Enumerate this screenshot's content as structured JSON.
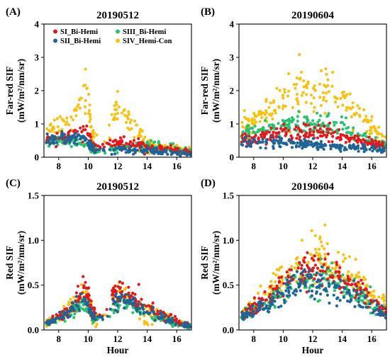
{
  "colors": {
    "SI_Bi-Hemi": "#e8151b",
    "SII_Bi-Hemi": "#1f6496",
    "SIII_Bi-Hemi": "#26c271",
    "SIV_Hemi-Con": "#f6c20f"
  },
  "chart_data": [
    {
      "panel": "(A)",
      "title": "20190512",
      "type": "scatter",
      "xlabel": "",
      "ylabel": [
        "Far-red SIF",
        "(mW/m²/nm/sr)"
      ],
      "xlim": [
        7,
        17
      ],
      "ylim": [
        0,
        4
      ],
      "xticks": [
        8,
        10,
        12,
        14,
        16
      ],
      "yticks": [
        "0",
        "1",
        "2",
        "3",
        "4"
      ],
      "grid": false,
      "legend": {
        "placement": "top",
        "entries": [
          "SI_Bi-Hemi",
          "SIII_Bi-Hemi",
          "SII_Bi-Hemi",
          "SIV_Hemi-Con"
        ]
      },
      "series_pattern": "clear-sky morning, clouds 10-12h, fragmented afternoon",
      "series": [
        {
          "name": "SI_Bi-Hemi",
          "x": [
            7.2,
            8,
            8.5,
            9,
            9.5,
            9.9,
            10.3,
            11,
            11.8,
            12.3,
            13,
            13.5,
            14,
            15,
            16,
            16.9
          ],
          "y": [
            0.55,
            0.6,
            0.65,
            0.7,
            0.85,
            0.8,
            0.35,
            0.3,
            0.4,
            0.45,
            0.35,
            0.4,
            0.3,
            0.25,
            0.2,
            0.15
          ]
        },
        {
          "name": "SII_Bi-Hemi",
          "x": [
            7.2,
            8,
            8.5,
            9,
            9.5,
            9.9,
            10.3,
            11,
            11.8,
            12.3,
            13,
            13.5,
            14,
            15,
            16,
            16.9
          ],
          "y": [
            0.5,
            0.55,
            0.55,
            0.55,
            0.6,
            0.5,
            0.25,
            0.2,
            0.2,
            0.25,
            0.2,
            0.2,
            0.2,
            0.15,
            0.12,
            0.1
          ]
        },
        {
          "name": "SIII_Bi-Hemi",
          "x": [
            7.2,
            8,
            8.5,
            9,
            9.5,
            9.9,
            10.3,
            11,
            11.8,
            12.3,
            13,
            13.5,
            14,
            15,
            16,
            16.9
          ],
          "y": [
            0.45,
            0.5,
            0.5,
            0.45,
            0.4,
            0.35,
            0.2,
            0.2,
            0.25,
            0.3,
            0.35,
            0.4,
            0.35,
            0.3,
            0.25,
            0.2
          ]
        },
        {
          "name": "SIV_Hemi-Con",
          "x": [
            7.2,
            8,
            8.5,
            9,
            9.5,
            9.9,
            10.3,
            11,
            11.8,
            12.3,
            13,
            13.5,
            14,
            15,
            16,
            16.9
          ],
          "y": [
            0.75,
            0.95,
            1.1,
            1.3,
            1.6,
            2.0,
            0.6,
            0.4,
            1.5,
            1.6,
            0.9,
            0.8,
            0.5,
            0.3,
            0.25,
            0.2
          ]
        }
      ]
    },
    {
      "panel": "(B)",
      "title": "20190604",
      "type": "scatter",
      "xlabel": "",
      "ylabel": [
        "Far-red SIF",
        "(mW/m²/nm/sr)"
      ],
      "xlim": [
        7,
        17
      ],
      "ylim": [
        0,
        4
      ],
      "xticks": [
        8,
        10,
        12,
        14,
        16
      ],
      "yticks": [
        "0",
        "1",
        "2",
        "3",
        "4"
      ],
      "grid": false,
      "series_pattern": "clear-sky diurnal arch",
      "series": [
        {
          "name": "SI_Bi-Hemi",
          "x": [
            7.2,
            8,
            9,
            10,
            11,
            12,
            13,
            14,
            15,
            16,
            16.9
          ],
          "y": [
            0.55,
            0.6,
            0.65,
            0.7,
            0.75,
            0.75,
            0.7,
            0.6,
            0.5,
            0.4,
            0.3
          ]
        },
        {
          "name": "SII_Bi-Hemi",
          "x": [
            7.2,
            8,
            9,
            10,
            11,
            12,
            13,
            14,
            15,
            16,
            16.9
          ],
          "y": [
            0.45,
            0.5,
            0.45,
            0.45,
            0.4,
            0.4,
            0.35,
            0.3,
            0.3,
            0.25,
            0.2
          ]
        },
        {
          "name": "SIII_Bi-Hemi",
          "x": [
            7.2,
            8,
            9,
            10,
            11,
            12,
            13,
            14,
            15,
            16,
            16.9
          ],
          "y": [
            0.65,
            0.75,
            0.85,
            0.95,
            1.0,
            1.0,
            0.95,
            0.85,
            0.7,
            0.5,
            0.35
          ]
        },
        {
          "name": "SIV_Hemi-Con",
          "x": [
            7.2,
            8,
            9,
            10,
            11,
            12,
            13,
            14,
            15,
            16,
            16.9
          ],
          "y": [
            0.85,
            1.1,
            1.4,
            1.75,
            2.0,
            2.1,
            2.0,
            1.7,
            1.3,
            0.9,
            0.5
          ]
        }
      ]
    },
    {
      "panel": "(C)",
      "title": "20190512",
      "type": "scatter",
      "xlabel": "Hour",
      "ylabel": [
        "Red SIF",
        "(mW/m²/nm/sr)"
      ],
      "xlim": [
        7,
        17
      ],
      "ylim": [
        0,
        1.5
      ],
      "xticks": [
        8,
        10,
        12,
        14,
        16
      ],
      "yticks": [
        "0.0",
        "0.5",
        "1.0",
        "1.5"
      ],
      "grid": false,
      "series_pattern": "clear-sky morning, clouds 10-12h, fragmented afternoon",
      "series": [
        {
          "name": "SI_Bi-Hemi",
          "x": [
            7.2,
            8,
            8.5,
            9,
            9.5,
            9.9,
            10.3,
            11,
            11.8,
            12.3,
            13,
            13.5,
            14,
            15,
            16,
            16.9
          ],
          "y": [
            0.08,
            0.15,
            0.2,
            0.3,
            0.42,
            0.45,
            0.18,
            0.15,
            0.4,
            0.45,
            0.35,
            0.3,
            0.25,
            0.18,
            0.1,
            0.05
          ]
        },
        {
          "name": "SII_Bi-Hemi",
          "x": [
            7.2,
            8,
            8.5,
            9,
            9.5,
            9.9,
            10.3,
            11,
            11.8,
            12.3,
            13,
            13.5,
            14,
            15,
            16,
            16.9
          ],
          "y": [
            0.07,
            0.13,
            0.18,
            0.25,
            0.32,
            0.3,
            0.15,
            0.12,
            0.3,
            0.32,
            0.28,
            0.25,
            0.2,
            0.15,
            0.08,
            0.04
          ]
        },
        {
          "name": "SIII_Bi-Hemi",
          "x": [
            7.2,
            8,
            8.5,
            9,
            9.5,
            9.9,
            10.3,
            11,
            11.8,
            12.3,
            13,
            13.5,
            14,
            15,
            16,
            16.9
          ],
          "y": [
            0.07,
            0.12,
            0.17,
            0.22,
            0.28,
            0.28,
            0.14,
            0.12,
            0.28,
            0.3,
            0.26,
            0.22,
            0.18,
            0.13,
            0.07,
            0.04
          ]
        },
        {
          "name": "SIV_Hemi-Con",
          "x": [
            7.2,
            8,
            8.5,
            9,
            9.5,
            9.9,
            10.3,
            11,
            11.8,
            12.3,
            13,
            13.5,
            14,
            15,
            16,
            16.9
          ],
          "y": [
            0.08,
            0.14,
            0.2,
            0.28,
            0.38,
            0.4,
            0.16,
            0.14,
            0.36,
            0.4,
            0.32,
            0.28,
            0.22,
            0.16,
            0.09,
            0.05
          ]
        }
      ]
    },
    {
      "panel": "(D)",
      "title": "20190604",
      "type": "scatter",
      "xlabel": "Hour",
      "ylabel": [
        "Red SIF",
        "(mW/m²/nm/sr)"
      ],
      "xlim": [
        7,
        17
      ],
      "ylim": [
        0,
        1.5
      ],
      "xticks": [
        8,
        10,
        12,
        14,
        16
      ],
      "yticks": [
        "0.0",
        "0.5",
        "1.0",
        "1.5"
      ],
      "grid": false,
      "series_pattern": "clear-sky diurnal arch",
      "series": [
        {
          "name": "SI_Bi-Hemi",
          "x": [
            7.2,
            8,
            9,
            10,
            11,
            12,
            13,
            14,
            15,
            16,
            16.9
          ],
          "y": [
            0.16,
            0.25,
            0.36,
            0.5,
            0.62,
            0.68,
            0.65,
            0.55,
            0.45,
            0.32,
            0.22
          ]
        },
        {
          "name": "SII_Bi-Hemi",
          "x": [
            7.2,
            8,
            9,
            10,
            11,
            12,
            13,
            14,
            15,
            16,
            16.9
          ],
          "y": [
            0.15,
            0.22,
            0.3,
            0.4,
            0.48,
            0.52,
            0.5,
            0.45,
            0.36,
            0.26,
            0.18
          ]
        },
        {
          "name": "SIII_Bi-Hemi",
          "x": [
            7.2,
            8,
            9,
            10,
            11,
            12,
            13,
            14,
            15,
            16,
            16.9
          ],
          "y": [
            0.15,
            0.22,
            0.32,
            0.45,
            0.55,
            0.6,
            0.58,
            0.5,
            0.4,
            0.28,
            0.2
          ]
        },
        {
          "name": "SIV_Hemi-Con",
          "x": [
            7.2,
            8,
            9,
            10,
            11,
            12,
            13,
            14,
            15,
            16,
            16.9
          ],
          "y": [
            0.18,
            0.28,
            0.42,
            0.58,
            0.72,
            0.8,
            0.78,
            0.68,
            0.55,
            0.4,
            0.28
          ]
        }
      ]
    }
  ]
}
